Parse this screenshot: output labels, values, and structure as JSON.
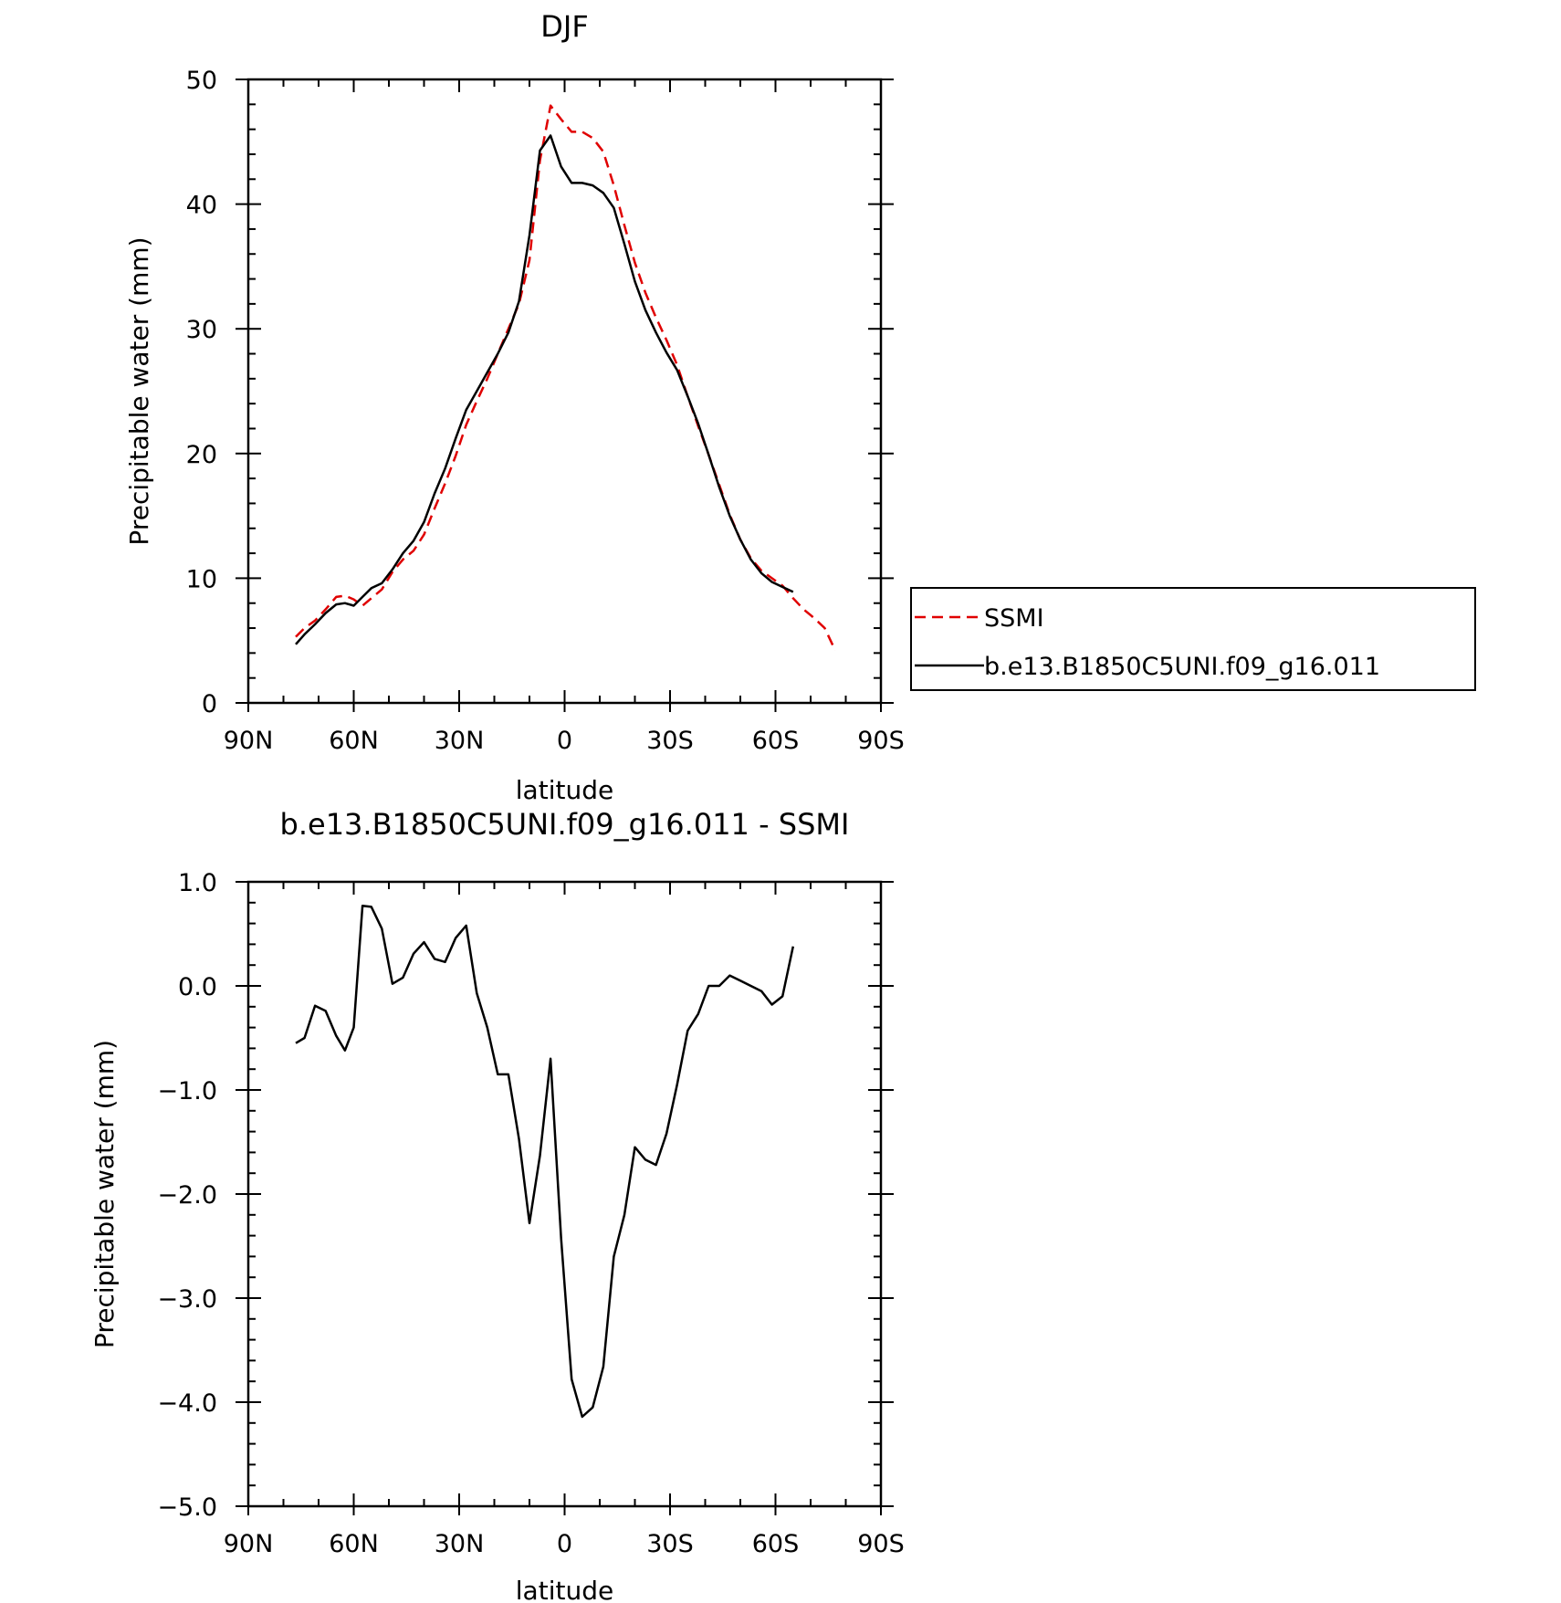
{
  "chart_data": [
    {
      "type": "line",
      "title": "DJF",
      "xlabel": "latitude",
      "ylabel": "Precipitable water (mm)",
      "xlim": [
        -90,
        90
      ],
      "ylim": [
        0,
        50
      ],
      "xticks": [
        -90,
        -60,
        -30,
        0,
        30,
        60,
        90
      ],
      "xtick_labels": [
        "90N",
        "60N",
        "30N",
        "0",
        "30S",
        "60S",
        "90S"
      ],
      "yticks": [
        0,
        10,
        20,
        30,
        40,
        50
      ],
      "ytick_labels": [
        "0",
        "10",
        "20",
        "30",
        "40",
        "50"
      ],
      "grid": false,
      "legend": "right, outside plot",
      "series": [
        {
          "name": "SSMI",
          "color": "#e00000",
          "style": "dashed",
          "x": [
            -76.5,
            -74,
            -71,
            -68,
            -65,
            -62.5,
            -60,
            -57.5,
            -55,
            -52,
            -49,
            -46,
            -43,
            -40,
            -37,
            -34,
            -31,
            -28,
            -25,
            -22,
            -19,
            -16,
            -13,
            -10,
            -7,
            -4,
            -1,
            2,
            5,
            8,
            11,
            14,
            17,
            20,
            23,
            26,
            29,
            32,
            35,
            38,
            41,
            44,
            47,
            50,
            53,
            56,
            59,
            62,
            65,
            68,
            71,
            74,
            77
          ],
          "y": [
            5.3,
            6.0,
            6.6,
            7.5,
            8.5,
            8.6,
            8.3,
            7.8,
            8.4,
            9.1,
            10.5,
            11.5,
            12.2,
            13.5,
            15.6,
            17.6,
            19.8,
            22.3,
            24.2,
            26.0,
            28.0,
            30.0,
            32.0,
            35.5,
            43.5,
            47.9,
            46.8,
            45.8,
            45.8,
            45.3,
            44.2,
            41.5,
            38.3,
            35.3,
            32.9,
            30.9,
            29.1,
            27.1,
            24.6,
            22.2,
            19.9,
            17.5,
            15.1,
            13.1,
            11.6,
            10.6,
            10.0,
            9.4,
            8.4,
            7.5,
            6.8,
            6.0,
            4.2
          ]
        },
        {
          "name": "b.e13.B1850C5UNI.f09_g16.011",
          "color": "#000000",
          "style": "solid",
          "x": [
            -76.5,
            -74,
            -71,
            -68,
            -65,
            -62.5,
            -60,
            -57.5,
            -55,
            -52,
            -49,
            -46,
            -43,
            -40,
            -37,
            -34,
            -31,
            -28,
            -25,
            -22,
            -19,
            -16,
            -13,
            -10,
            -7,
            -4,
            -1,
            2,
            5,
            8,
            11,
            14,
            17,
            20,
            23,
            26,
            29,
            32,
            35,
            38,
            41,
            44,
            47,
            50,
            53,
            56,
            59,
            62,
            65
          ],
          "y": [
            4.7,
            5.5,
            6.3,
            7.2,
            7.9,
            8.0,
            7.8,
            8.5,
            9.2,
            9.6,
            10.7,
            12.0,
            13.0,
            14.5,
            16.8,
            18.8,
            21.2,
            23.5,
            25.0,
            26.5,
            28.0,
            29.7,
            32.2,
            37.5,
            44.3,
            45.5,
            43.0,
            41.7,
            41.7,
            41.5,
            40.9,
            39.7,
            36.8,
            33.8,
            31.5,
            29.7,
            28.1,
            26.7,
            24.6,
            22.4,
            19.9,
            17.3,
            15.0,
            13.1,
            11.5,
            10.4,
            9.7,
            9.3,
            8.9
          ]
        }
      ]
    },
    {
      "type": "line",
      "title": "b.e13.B1850C5UNI.f09_g16.011 - SSMI",
      "xlabel": "latitude",
      "ylabel": "Precipitable water (mm)",
      "xlim": [
        -90,
        90
      ],
      "ylim": [
        -5.0,
        1.0
      ],
      "xticks": [
        -90,
        -60,
        -30,
        0,
        30,
        60,
        90
      ],
      "xtick_labels": [
        "90N",
        "60N",
        "30N",
        "0",
        "30S",
        "60S",
        "90S"
      ],
      "yticks": [
        -5.0,
        -4.0,
        -3.0,
        -2.0,
        -1.0,
        0.0,
        1.0
      ],
      "ytick_labels": [
        "−5.0",
        "−4.0",
        "−3.0",
        "−2.0",
        "−1.0",
        "0.0",
        "1.0"
      ],
      "grid": false,
      "series": [
        {
          "color": "#000000",
          "style": "solid",
          "x": [
            -76.5,
            -74,
            -71,
            -68,
            -65,
            -62.5,
            -60,
            -57.5,
            -55,
            -52,
            -49,
            -46,
            -43,
            -40,
            -37,
            -34,
            -31,
            -28,
            -25,
            -22,
            -19,
            -16,
            -13,
            -10,
            -7,
            -4,
            -1,
            2,
            5,
            8,
            11,
            14,
            17,
            20,
            23,
            26,
            29,
            32,
            35,
            38,
            41,
            44,
            47,
            50,
            53,
            56,
            59,
            62,
            65
          ],
          "y": [
            -0.55,
            -0.5,
            -0.19,
            -0.24,
            -0.48,
            -0.62,
            -0.4,
            0.77,
            0.76,
            0.55,
            0.02,
            0.08,
            0.31,
            0.42,
            0.26,
            0.23,
            0.46,
            0.58,
            -0.07,
            -0.4,
            -0.85,
            -0.85,
            -1.47,
            -2.28,
            -1.63,
            -0.7,
            -2.43,
            -3.78,
            -4.14,
            -4.05,
            -3.66,
            -2.6,
            -2.2,
            -1.55,
            -1.67,
            -1.72,
            -1.42,
            -0.95,
            -0.43,
            -0.27,
            0.0,
            0.0,
            0.1,
            0.05,
            0.0,
            -0.05,
            -0.18,
            -0.1,
            0.38
          ]
        }
      ]
    }
  ]
}
